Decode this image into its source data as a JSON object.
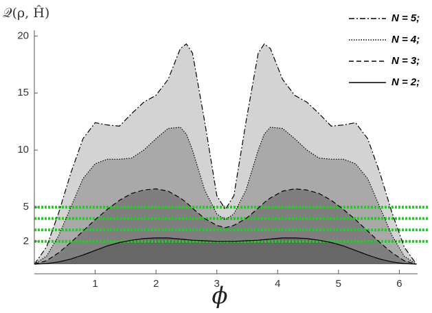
{
  "chart_data": {
    "type": "area",
    "y_label": "𝒬(ρ, Ĥ)",
    "x_label": "ϕ",
    "x": [
      0,
      0.2,
      0.4,
      0.6,
      0.8,
      1.0,
      1.2,
      1.4,
      1.6,
      1.8,
      2.0,
      2.2,
      2.4,
      2.5,
      2.6,
      2.8,
      3.0,
      3.14,
      3.28,
      3.48,
      3.68,
      3.78,
      3.88,
      4.08,
      4.28,
      4.48,
      4.68,
      4.88,
      5.08,
      5.28,
      5.48,
      5.68,
      5.88,
      6.08,
      6.28
    ],
    "series": [
      {
        "name": "N = 5;",
        "color": "#000000",
        "fill": "#d3d3d3",
        "dash": "dashdot",
        "values": [
          0,
          1.5,
          4.5,
          8,
          11,
          12.4,
          12.2,
          12.1,
          13.2,
          14.2,
          14.8,
          16.2,
          18.9,
          19.3,
          18.5,
          12.5,
          6.0,
          4.8,
          6.0,
          12.5,
          18.5,
          19.3,
          18.9,
          16.2,
          14.8,
          14.2,
          13.2,
          12.1,
          12.2,
          12.4,
          11,
          8,
          4.5,
          1.5,
          0
        ]
      },
      {
        "name": "N = 4;",
        "color": "#000000",
        "fill": "#a9a9a9",
        "dash": "dotted",
        "values": [
          0,
          0.7,
          2.5,
          5,
          7.5,
          8.8,
          9.2,
          9.2,
          9.3,
          10,
          11,
          11.9,
          12.0,
          11.4,
          10,
          6.5,
          4.4,
          3.9,
          4.4,
          6.5,
          10,
          11.4,
          12.0,
          11.9,
          11,
          10,
          9.3,
          9.2,
          9.2,
          8.8,
          7.5,
          5,
          2.5,
          0.7,
          0
        ]
      },
      {
        "name": "N = 3;",
        "color": "#000000",
        "fill": "#7f7f7f",
        "dash": "dashed",
        "values": [
          0,
          0.3,
          1,
          1.9,
          2.9,
          3.9,
          4.8,
          5.6,
          6.2,
          6.5,
          6.6,
          6.4,
          5.8,
          5.4,
          4.9,
          4.0,
          3.4,
          3.2,
          3.4,
          4.0,
          4.9,
          5.4,
          5.8,
          6.4,
          6.6,
          6.5,
          6.2,
          5.6,
          4.8,
          3.9,
          2.9,
          1.9,
          1,
          0.3,
          0
        ]
      },
      {
        "name": "N = 2;",
        "color": "#000000",
        "fill": "#676767",
        "dash": "solid",
        "values": [
          0,
          0.05,
          0.2,
          0.45,
          0.8,
          1.2,
          1.6,
          1.9,
          2.1,
          2.25,
          2.3,
          2.3,
          2.2,
          2.15,
          2.1,
          2.05,
          2.0,
          2.0,
          2.0,
          2.05,
          2.1,
          2.15,
          2.2,
          2.3,
          2.3,
          2.25,
          2.1,
          1.9,
          1.6,
          1.2,
          0.8,
          0.45,
          0.2,
          0.05,
          0
        ]
      }
    ],
    "hlines": [
      2,
      3,
      4,
      5
    ],
    "hline_color": "#22cc22",
    "xlim": [
      0,
      6.3
    ],
    "ylim": [
      0,
      20.5
    ],
    "xticks": [
      1,
      2,
      3,
      4,
      5,
      6
    ],
    "yticks": [
      2,
      5,
      10,
      15,
      20
    ],
    "legend": "top-right"
  }
}
